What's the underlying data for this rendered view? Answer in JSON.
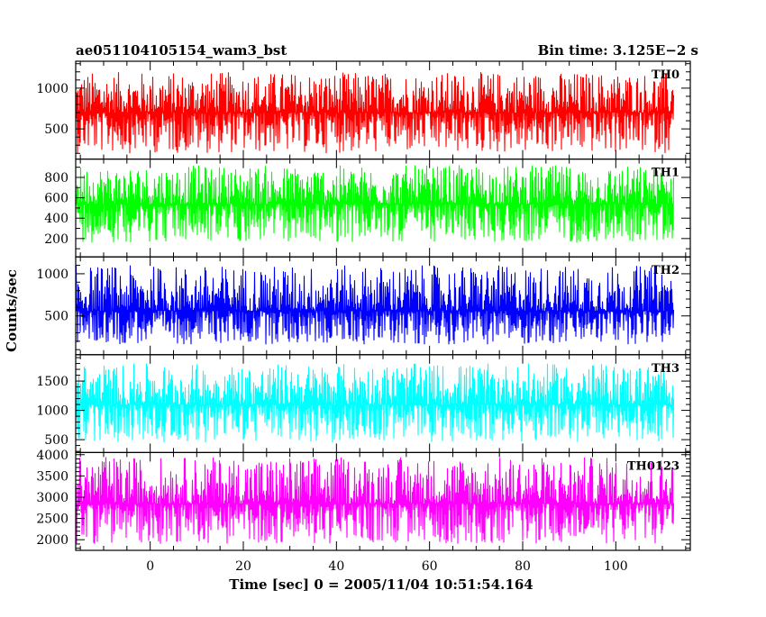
{
  "header": {
    "left_title": "ae051104105154_wam3_bst",
    "right_title": "Bin time: 3.125E−2 s"
  },
  "chart_data": {
    "type": "line",
    "xlabel": "Time [sec] 0 = 2005/11/04 10:51:54.164",
    "ylabel": "Counts/sec",
    "xlim": [
      -16,
      116
    ],
    "x_ticks": [
      0,
      20,
      40,
      60,
      80,
      100
    ],
    "x_ticks_minor_step": 5,
    "data_x_range": [
      -15.9,
      112.5
    ],
    "bin_time_s": 0.03125,
    "grid": false,
    "series": [
      {
        "name": "TH0",
        "color": "#ff0000",
        "ylim": [
          130,
          1330
        ],
        "y_ticks": [
          500,
          1000
        ],
        "y_ticks_minor_step": 100,
        "mean": 700,
        "envelope_low": 200,
        "envelope_high": 1200
      },
      {
        "name": "TH1",
        "color": "#00ff00",
        "ylim": [
          20,
          980
        ],
        "y_ticks": [
          200,
          400,
          600,
          800
        ],
        "y_ticks_minor_step": 100,
        "mean": 540,
        "envelope_low": 160,
        "envelope_high": 920
      },
      {
        "name": "TH2",
        "color": "#0000ff",
        "ylim": [
          40,
          1200
        ],
        "y_ticks": [
          500,
          1000
        ],
        "y_ticks_minor_step": 100,
        "mean": 560,
        "envelope_low": 160,
        "envelope_high": 1100
      },
      {
        "name": "TH3",
        "color": "#00ffff",
        "ylim": [
          280,
          1950
        ],
        "y_ticks": [
          500,
          1000,
          1500
        ],
        "y_ticks_minor_step": 100,
        "mean": 1100,
        "envelope_low": 450,
        "envelope_high": 1800
      },
      {
        "name": "TH0123",
        "color": "#ff00ff",
        "ylim": [
          1750,
          4050
        ],
        "y_ticks": [
          2000,
          2500,
          3000,
          3500,
          4000
        ],
        "y_ticks_minor_step": 100,
        "mean": 2850,
        "envelope_low": 1900,
        "envelope_high": 3950
      }
    ]
  }
}
